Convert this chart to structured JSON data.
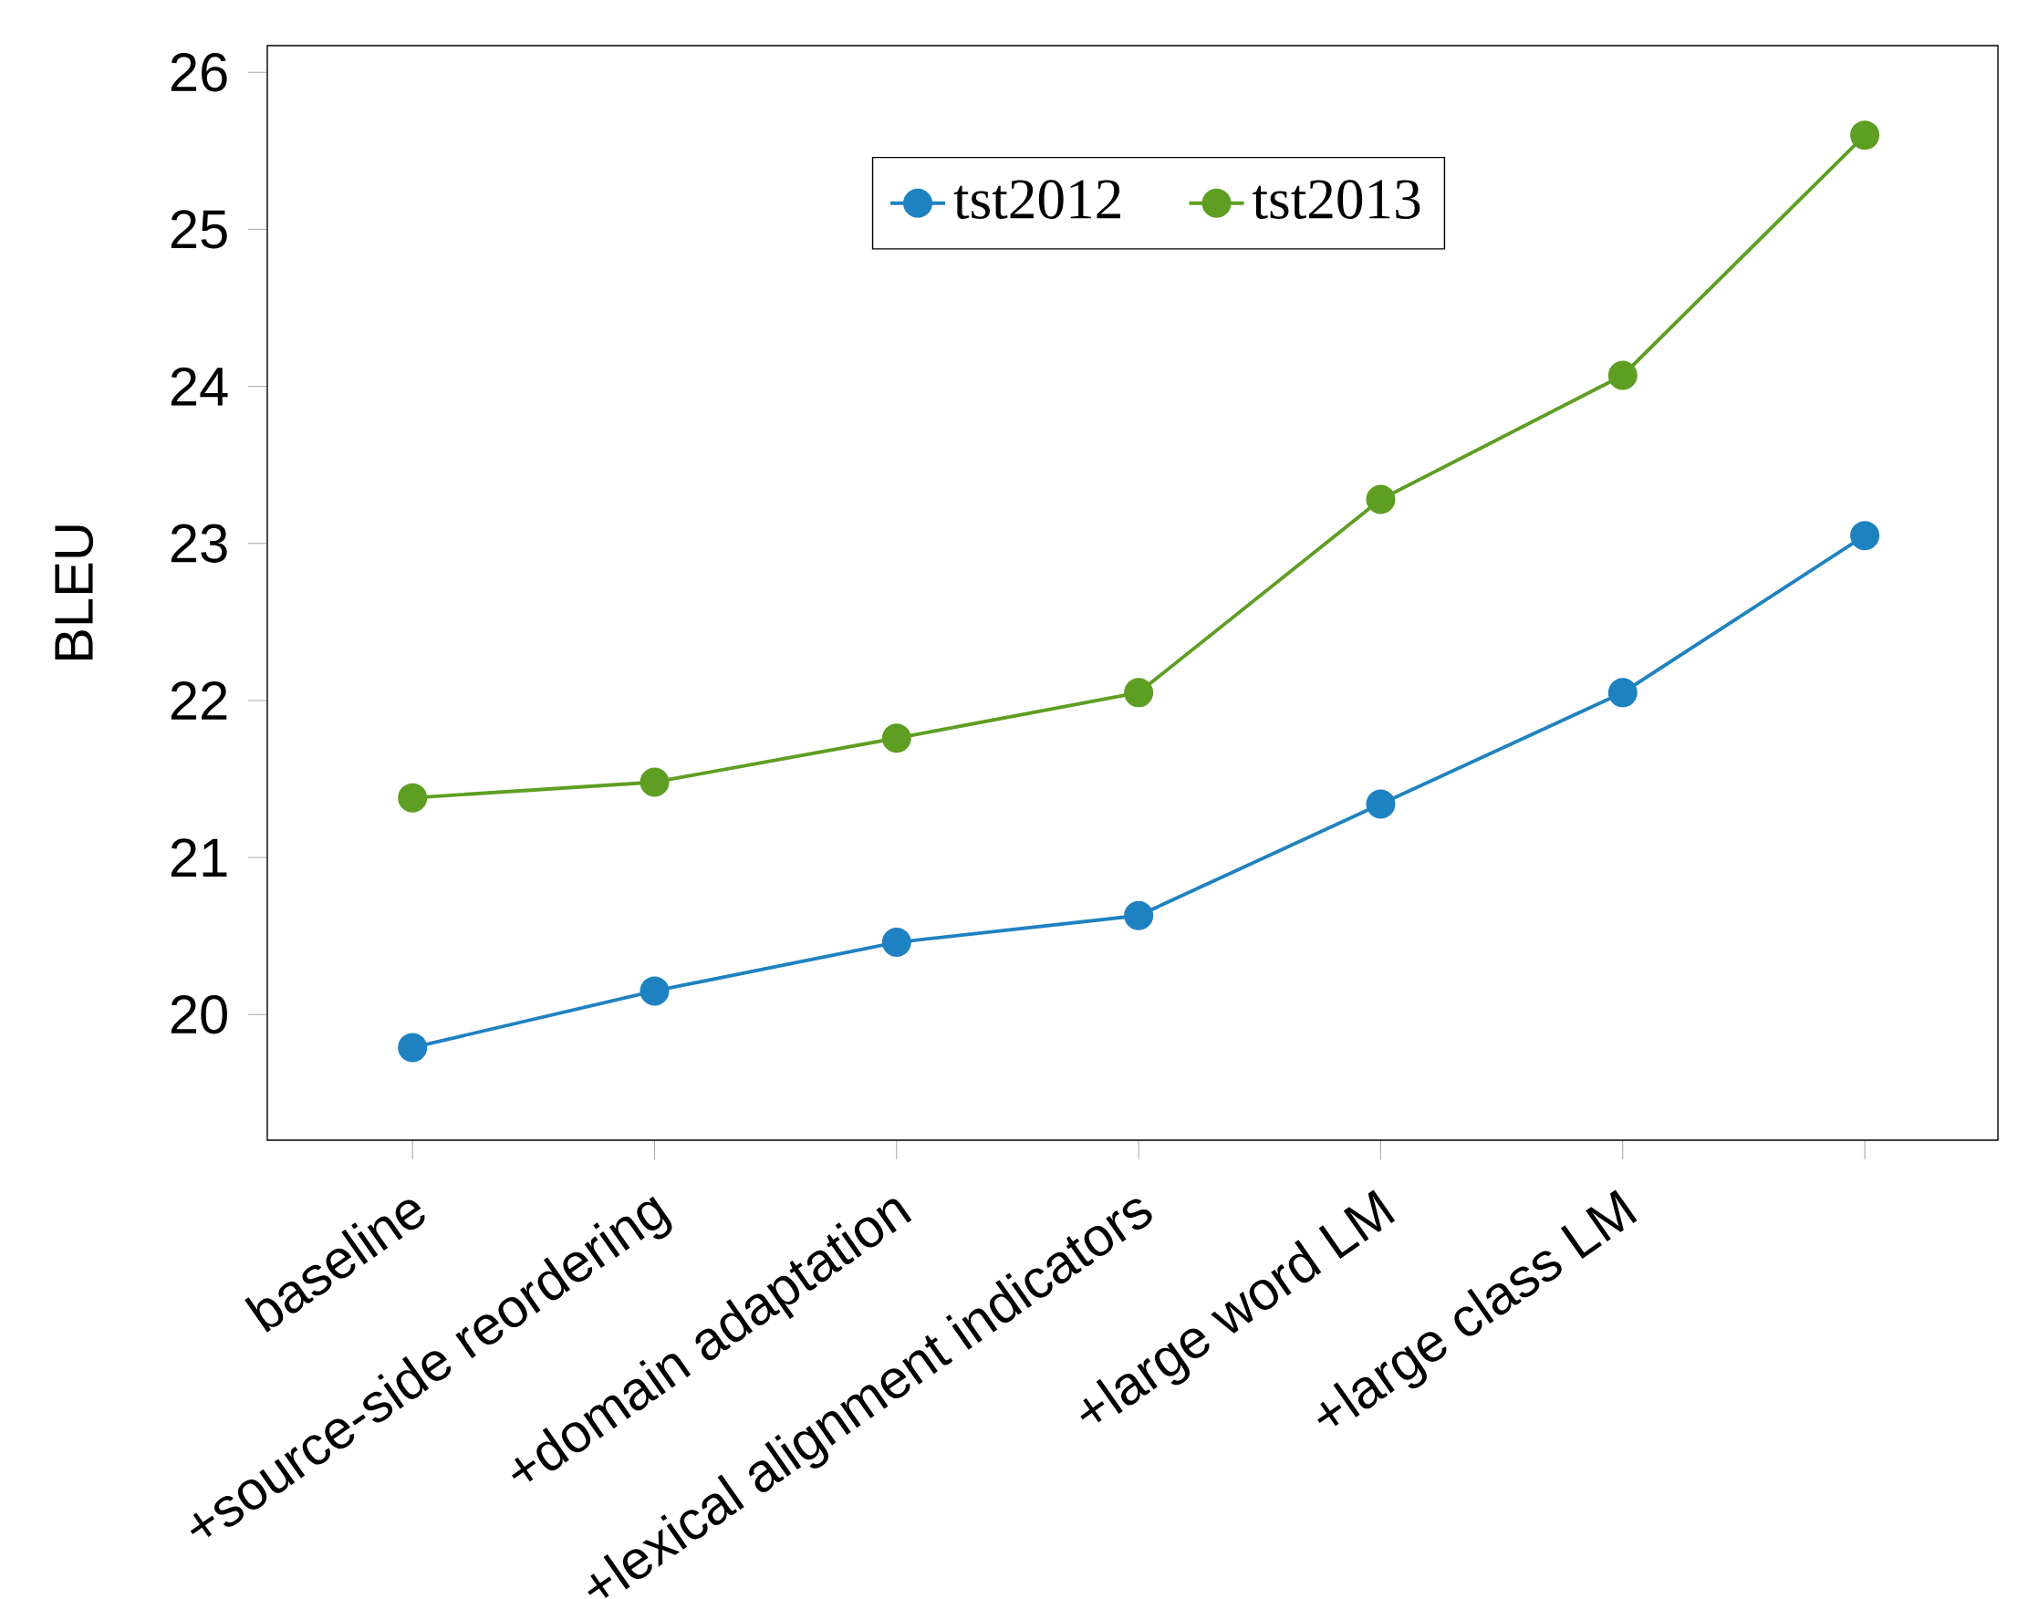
{
  "chart_data": {
    "type": "line",
    "ylabel": "BLEU",
    "categories": [
      "baseline",
      "+source-side reordering",
      "+domain adaptation",
      "+lexical alignment indicators",
      "+large word LM",
      "+large class LM",
      null
    ],
    "series": [
      {
        "name": "tst2012",
        "color": "#1f82c0",
        "values": [
          19.79,
          20.15,
          20.46,
          20.63,
          21.34,
          22.05,
          23.05
        ]
      },
      {
        "name": "tst2013",
        "color": "#5e9e22",
        "values": [
          21.38,
          21.48,
          21.76,
          22.05,
          23.28,
          24.07,
          25.6
        ]
      }
    ],
    "ylim": [
      19.2,
      26.17
    ],
    "yticks": [
      20,
      21,
      22,
      23,
      24,
      25,
      26
    ],
    "marker": "circle",
    "line_style": "solid",
    "legend": "top",
    "grid": false
  }
}
